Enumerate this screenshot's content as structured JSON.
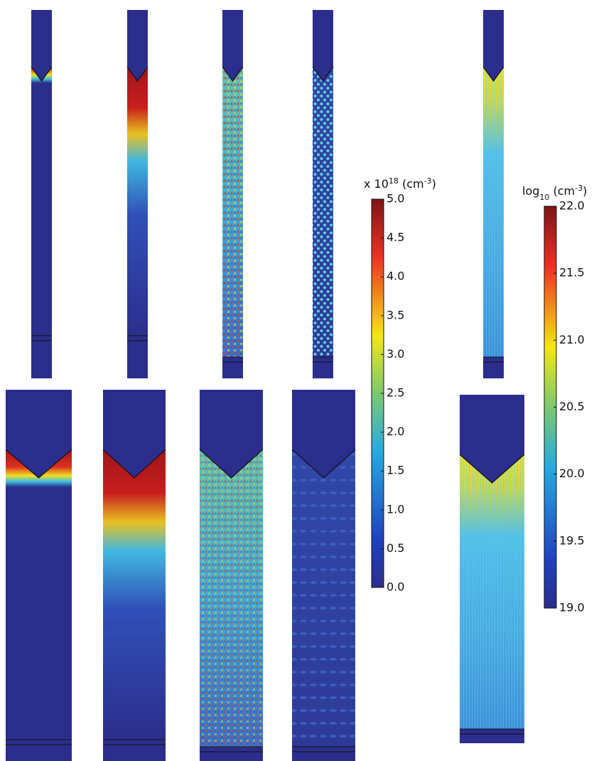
{
  "colorbars": [
    {
      "title_parts": [
        "x 10",
        "18",
        " (cm",
        "-3",
        ")"
      ],
      "lim": [
        0,
        5
      ],
      "ticks": [
        {
          "value": 0,
          "label": "0.0"
        },
        {
          "value": 0.5,
          "label": "0.5"
        },
        {
          "value": 1,
          "label": "1.0"
        },
        {
          "value": 1.5,
          "label": "1.5"
        },
        {
          "value": 2,
          "label": "2.0"
        },
        {
          "value": 2.5,
          "label": "2.5"
        },
        {
          "value": 3,
          "label": "3.0"
        },
        {
          "value": 3.5,
          "label": "3.5"
        },
        {
          "value": 4,
          "label": "4.0"
        },
        {
          "value": 4.5,
          "label": "4.5"
        },
        {
          "value": 5,
          "label": "5.0"
        }
      ]
    },
    {
      "title_parts": [
        "log",
        "10",
        " (cm",
        "-3",
        ")"
      ],
      "lim": [
        19,
        22
      ],
      "ticks": [
        {
          "value": 19,
          "label": "19.0"
        },
        {
          "value": 19.5,
          "label": "19.5"
        },
        {
          "value": 20,
          "label": "20.0"
        },
        {
          "value": 20.5,
          "label": "20.5"
        },
        {
          "value": 21,
          "label": "21.0"
        },
        {
          "value": 21.5,
          "label": "21.5"
        },
        {
          "value": 22,
          "label": "22.0"
        }
      ]
    }
  ]
}
